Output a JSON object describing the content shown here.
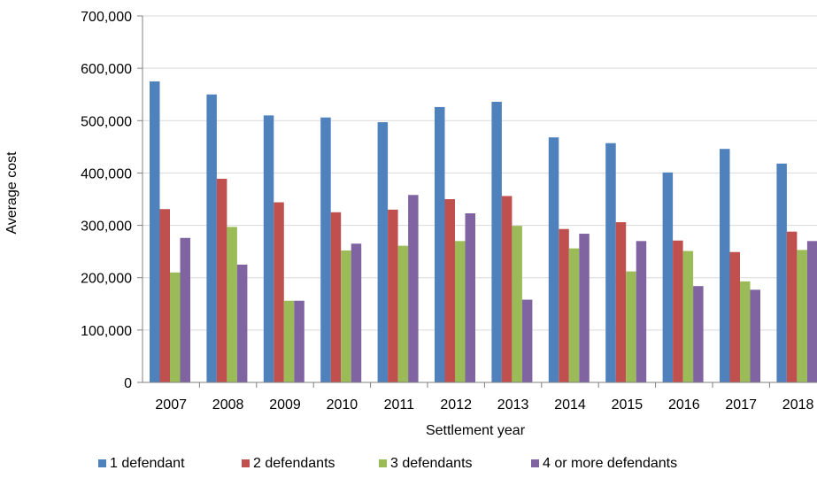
{
  "chart_data": {
    "type": "bar",
    "categories": [
      "2007",
      "2008",
      "2009",
      "2010",
      "2011",
      "2012",
      "2013",
      "2014",
      "2015",
      "2016",
      "2017",
      "2018"
    ],
    "series": [
      {
        "name": "1 defendant",
        "color": "#4F81BD",
        "values": [
          575000,
          550000,
          510000,
          506000,
          497000,
          526000,
          536000,
          468000,
          457000,
          401000,
          446000,
          418000
        ]
      },
      {
        "name": "2 defendants",
        "color": "#C0504D",
        "values": [
          331000,
          389000,
          344000,
          325000,
          330000,
          350000,
          356000,
          293000,
          306000,
          271000,
          249000,
          288000
        ]
      },
      {
        "name": "3 defendants",
        "color": "#9BBB59",
        "values": [
          210000,
          297000,
          156000,
          252000,
          261000,
          270000,
          299000,
          256000,
          212000,
          251000,
          193000,
          253000
        ]
      },
      {
        "name": "4 or more defendants",
        "color": "#8064A2",
        "values": [
          276000,
          225000,
          156000,
          265000,
          358000,
          323000,
          158000,
          284000,
          270000,
          184000,
          177000,
          270000
        ]
      }
    ],
    "yticks": [
      "0",
      "100,000",
      "200,000",
      "300,000",
      "400,000",
      "500,000",
      "600,000",
      "700,000"
    ],
    "ylim": [
      0,
      700000
    ],
    "xlabel": "Settlement year",
    "ylabel": "Average cost",
    "grid": true,
    "legend": "bottom"
  }
}
